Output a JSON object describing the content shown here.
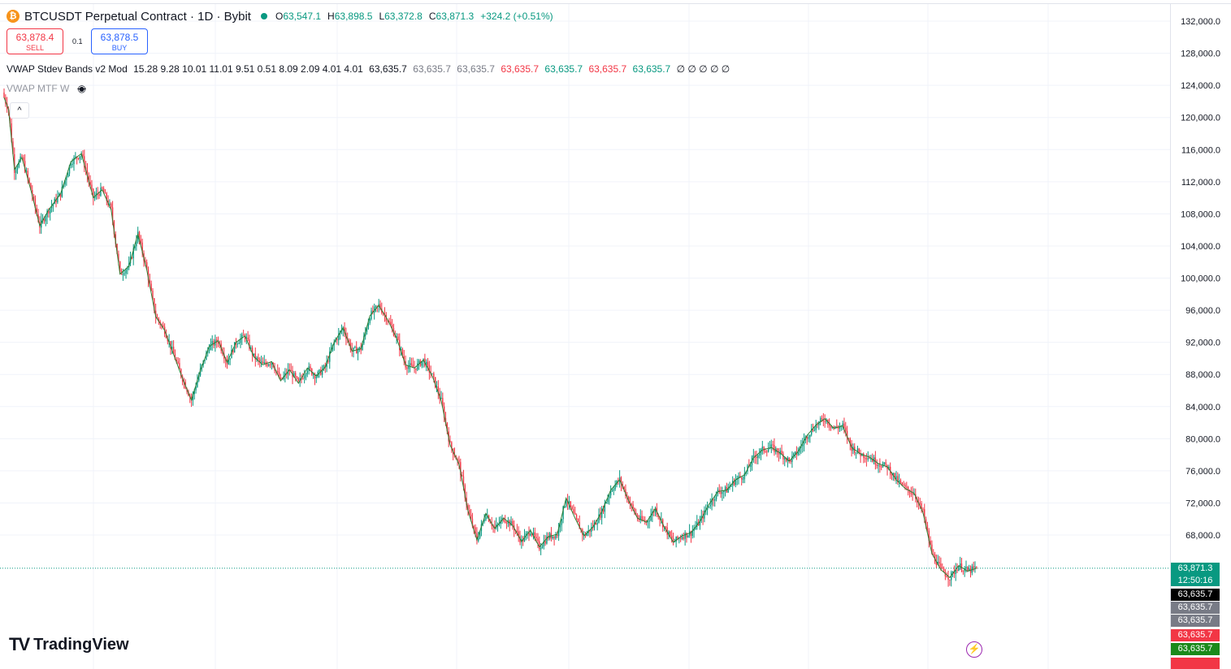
{
  "header": {
    "symbol_icon": "bitcoin-icon",
    "symbol_icon_glyph": "₿",
    "title": "BTCUSDT Perpetual Contract · 1D · Bybit",
    "ohlc": {
      "o_label": "O",
      "o": "63,547.1",
      "h_label": "H",
      "h": "63,898.5",
      "l_label": "L",
      "l": "63,372.8",
      "c_label": "C",
      "c": "63,871.3",
      "change": "+324.2 (+0.51%)"
    }
  },
  "trade": {
    "sell_price": "63,878.4",
    "sell_label": "SELL",
    "spread": "0.1",
    "buy_price": "63,878.5",
    "buy_label": "BUY"
  },
  "indicators": [
    {
      "name": "VWAP Stdev Bands v2 Mod",
      "params": "15.28 9.28 10.01 11.01 9.51 0.51 8.09 2.09 4.01 4.01",
      "values": [
        {
          "text": "63,635.7",
          "color": "#131722"
        },
        {
          "text": "63,635.7",
          "color": "#787b86"
        },
        {
          "text": "63,635.7",
          "color": "#787b86"
        },
        {
          "text": "63,635.7",
          "color": "#f23645"
        },
        {
          "text": "63,635.7",
          "color": "#089981"
        },
        {
          "text": "63,635.7",
          "color": "#f23645"
        },
        {
          "text": "63,635.7",
          "color": "#089981"
        }
      ],
      "empties": "∅ ∅ ∅ ∅ ∅"
    },
    {
      "name": "VWAP MTF W",
      "icon": "eye-off-icon"
    }
  ],
  "collapse_glyph": "^",
  "logo": {
    "mark": "TV",
    "text": "TradingView"
  },
  "bolt_glyph": "⚡",
  "price_tags": [
    {
      "text": "63,871.3",
      "bg": "#089981"
    },
    {
      "text": "12:50:16",
      "bg": "#089981"
    },
    {
      "text": "63,635.7",
      "bg": "#000000"
    },
    {
      "text": "63,635.7",
      "bg": "#787b86"
    },
    {
      "text": "63,635.7",
      "bg": "#787b86"
    },
    {
      "text": "63,635.7",
      "bg": "#f23645"
    },
    {
      "text": "63,635.7",
      "bg": "#1b8a1b"
    }
  ],
  "colors": {
    "up": "#089981",
    "down": "#f23645",
    "grid": "#f0f3fa",
    "vwap": "#2e7d32"
  },
  "chart_data": {
    "type": "candlestick",
    "y_ticks": [
      "132,000.0",
      "128,000.0",
      "124,000.0",
      "120,000.0",
      "116,000.0",
      "112,000.0",
      "108,000.0",
      "104,000.0",
      "100,000.0",
      "96,000.0",
      "92,000.0",
      "88,000.0",
      "84,000.0",
      "80,000.0",
      "76,000.0",
      "72,000.0",
      "68,000.0"
    ],
    "ylim": [
      60800,
      133000
    ],
    "last_price": 63871.3,
    "close_path": [
      [
        0,
        122500
      ],
      [
        3,
        121000
      ],
      [
        7,
        113500
      ],
      [
        12,
        115000
      ],
      [
        18,
        111000
      ],
      [
        24,
        106500
      ],
      [
        30,
        108500
      ],
      [
        38,
        110500
      ],
      [
        45,
        114500
      ],
      [
        52,
        115500
      ],
      [
        60,
        110000
      ],
      [
        66,
        111000
      ],
      [
        72,
        108500
      ],
      [
        78,
        100500
      ],
      [
        84,
        101500
      ],
      [
        90,
        105500
      ],
      [
        96,
        101000
      ],
      [
        102,
        95200
      ],
      [
        108,
        93500
      ],
      [
        114,
        90500
      ],
      [
        120,
        87500
      ],
      [
        126,
        84800
      ],
      [
        132,
        88500
      ],
      [
        138,
        91500
      ],
      [
        144,
        92200
      ],
      [
        150,
        89500
      ],
      [
        156,
        92000
      ],
      [
        162,
        92800
      ],
      [
        168,
        90200
      ],
      [
        174,
        89200
      ],
      [
        180,
        89600
      ],
      [
        186,
        87200
      ],
      [
        192,
        88600
      ],
      [
        198,
        86900
      ],
      [
        204,
        88800
      ],
      [
        210,
        87800
      ],
      [
        216,
        88900
      ],
      [
        222,
        92000
      ],
      [
        228,
        93800
      ],
      [
        234,
        90900
      ],
      [
        240,
        91200
      ],
      [
        246,
        95300
      ],
      [
        252,
        96600
      ],
      [
        258,
        94800
      ],
      [
        264,
        92500
      ],
      [
        270,
        89200
      ],
      [
        276,
        88800
      ],
      [
        282,
        89800
      ],
      [
        288,
        87800
      ],
      [
        294,
        84700
      ],
      [
        300,
        79200
      ],
      [
        306,
        76800
      ],
      [
        312,
        71000
      ],
      [
        318,
        67400
      ],
      [
        324,
        70700
      ],
      [
        330,
        68800
      ],
      [
        336,
        70100
      ],
      [
        342,
        69200
      ],
      [
        348,
        67200
      ],
      [
        354,
        68600
      ],
      [
        360,
        66500
      ],
      [
        366,
        67800
      ],
      [
        372,
        68100
      ],
      [
        378,
        72600
      ],
      [
        384,
        70100
      ],
      [
        390,
        67900
      ],
      [
        396,
        69000
      ],
      [
        402,
        70900
      ],
      [
        408,
        73600
      ],
      [
        414,
        74900
      ],
      [
        420,
        72300
      ],
      [
        426,
        70100
      ],
      [
        432,
        69600
      ],
      [
        438,
        71300
      ],
      [
        444,
        69000
      ],
      [
        450,
        67100
      ],
      [
        456,
        67900
      ],
      [
        462,
        68300
      ],
      [
        468,
        69700
      ],
      [
        474,
        71800
      ],
      [
        480,
        73400
      ],
      [
        486,
        73600
      ],
      [
        492,
        74900
      ],
      [
        498,
        75500
      ],
      [
        504,
        77600
      ],
      [
        510,
        78600
      ],
      [
        516,
        78900
      ],
      [
        522,
        78200
      ],
      [
        528,
        77200
      ],
      [
        534,
        78400
      ],
      [
        540,
        80400
      ],
      [
        546,
        81700
      ],
      [
        552,
        82500
      ],
      [
        558,
        81300
      ],
      [
        564,
        81600
      ],
      [
        570,
        78900
      ],
      [
        576,
        78100
      ],
      [
        582,
        77700
      ],
      [
        588,
        76900
      ],
      [
        594,
        76500
      ],
      [
        600,
        74900
      ],
      [
        606,
        73800
      ],
      [
        612,
        73200
      ],
      [
        618,
        70800
      ],
      [
        624,
        65700
      ],
      [
        630,
        63700
      ],
      [
        636,
        62700
      ],
      [
        642,
        64200
      ],
      [
        648,
        63500
      ],
      [
        654,
        63871.3
      ]
    ]
  }
}
